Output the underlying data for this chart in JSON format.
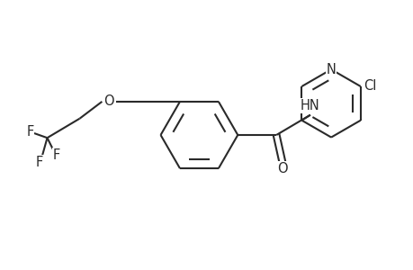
{
  "background_color": "#ffffff",
  "line_color": "#2a2a2a",
  "line_width": 1.5,
  "font_size": 10.5,
  "xlim": [
    -2.4,
    2.9
  ],
  "ylim": [
    -1.4,
    1.4
  ],
  "figsize": [
    4.6,
    3.0
  ],
  "dpi": 100
}
